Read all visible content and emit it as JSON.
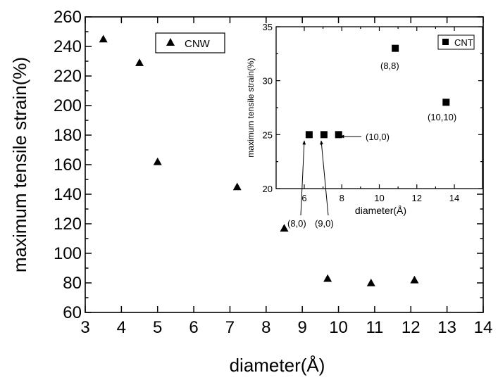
{
  "chart_data": [
    {
      "type": "scatter",
      "xlabel": "diameter(Å)",
      "ylabel": "maximum tensile strain(%)",
      "xlim": [
        3,
        14
      ],
      "ylim": [
        60,
        260
      ],
      "xticks": [
        3,
        4,
        5,
        6,
        7,
        8,
        9,
        10,
        11,
        12,
        13,
        14
      ],
      "yticks": [
        60,
        80,
        100,
        120,
        140,
        160,
        180,
        200,
        220,
        240,
        260
      ],
      "legend_position": "top-left",
      "series": [
        {
          "name": "CNW",
          "marker": "triangle",
          "color": "#000000",
          "points": [
            {
              "x": 3.5,
              "y": 245
            },
            {
              "x": 4.5,
              "y": 229
            },
            {
              "x": 5.0,
              "y": 162
            },
            {
              "x": 7.2,
              "y": 145
            },
            {
              "x": 8.5,
              "y": 117
            },
            {
              "x": 9.7,
              "y": 83
            },
            {
              "x": 10.9,
              "y": 80
            },
            {
              "x": 12.1,
              "y": 82
            }
          ]
        }
      ]
    },
    {
      "type": "scatter",
      "xlabel": "diameter(Å)",
      "ylabel": "maximum tensile strain(%)",
      "xlim": [
        4.5,
        15.5
      ],
      "ylim": [
        20,
        35
      ],
      "xticks": [
        6,
        8,
        10,
        12,
        14
      ],
      "yticks": [
        20,
        25,
        30,
        35
      ],
      "legend_position": "top-right",
      "series": [
        {
          "name": "CNT",
          "marker": "square",
          "color": "#000000",
          "points": [
            {
              "x": 6.26,
              "y": 25,
              "label": "(8,0)"
            },
            {
              "x": 7.05,
              "y": 25,
              "label": "(9,0)"
            },
            {
              "x": 7.83,
              "y": 25,
              "label": "(10,0)"
            },
            {
              "x": 10.85,
              "y": 33,
              "label": "(8,8)"
            },
            {
              "x": 13.56,
              "y": 28,
              "label": "(10,10)"
            }
          ]
        }
      ]
    }
  ]
}
